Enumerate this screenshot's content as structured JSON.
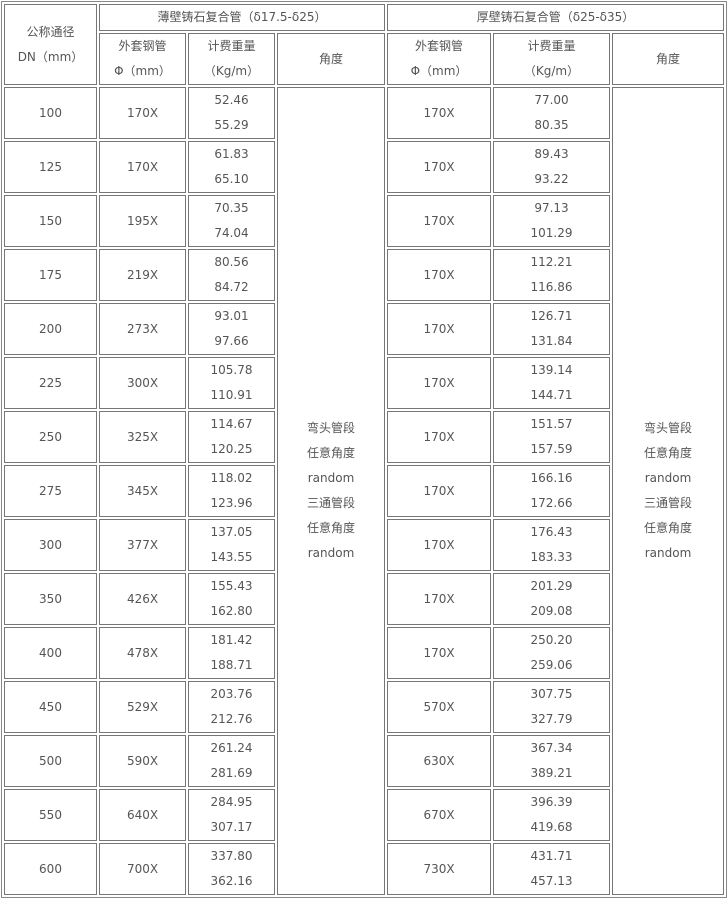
{
  "header": {
    "dn_label": [
      "公称通径",
      "DN（mm）"
    ],
    "thin_group": "薄壁铸石复合管（δ17.5-δ25）",
    "thick_group": "厚壁铸石复合管（δ25-δ35）",
    "outer_pipe": [
      "外套钢管",
      "Φ（mm）"
    ],
    "weight": [
      "计费重量",
      "（Kg/m）"
    ],
    "angle": "角度"
  },
  "angle_text": [
    "弯头管段",
    "任意角度",
    "random",
    "三通管段",
    "任意角度",
    "random"
  ],
  "rows": [
    {
      "dn": "100",
      "thin_pipe": "170X",
      "thin_w": [
        "52.46",
        "55.29"
      ],
      "thick_pipe": "170X",
      "thick_w": [
        "77.00",
        "80.35"
      ]
    },
    {
      "dn": "125",
      "thin_pipe": "170X",
      "thin_w": [
        "61.83",
        "65.10"
      ],
      "thick_pipe": "170X",
      "thick_w": [
        "89.43",
        "93.22"
      ]
    },
    {
      "dn": "150",
      "thin_pipe": "195X",
      "thin_w": [
        "70.35",
        "74.04"
      ],
      "thick_pipe": "170X",
      "thick_w": [
        "97.13",
        "101.29"
      ]
    },
    {
      "dn": "175",
      "thin_pipe": "219X",
      "thin_w": [
        "80.56",
        "84.72"
      ],
      "thick_pipe": "170X",
      "thick_w": [
        "112.21",
        "116.86"
      ]
    },
    {
      "dn": "200",
      "thin_pipe": "273X",
      "thin_w": [
        "93.01",
        "97.66"
      ],
      "thick_pipe": "170X",
      "thick_w": [
        "126.71",
        "131.84"
      ]
    },
    {
      "dn": "225",
      "thin_pipe": "300X",
      "thin_w": [
        "105.78",
        "110.91"
      ],
      "thick_pipe": "170X",
      "thick_w": [
        "139.14",
        "144.71"
      ]
    },
    {
      "dn": "250",
      "thin_pipe": "325X",
      "thin_w": [
        "114.67",
        "120.25"
      ],
      "thick_pipe": "170X",
      "thick_w": [
        "151.57",
        "157.59"
      ]
    },
    {
      "dn": "275",
      "thin_pipe": "345X",
      "thin_w": [
        "118.02",
        "123.96"
      ],
      "thick_pipe": "170X",
      "thick_w": [
        "166.16",
        "172.66"
      ]
    },
    {
      "dn": "300",
      "thin_pipe": "377X",
      "thin_w": [
        "137.05",
        "143.55"
      ],
      "thick_pipe": "170X",
      "thick_w": [
        "176.43",
        "183.33"
      ]
    },
    {
      "dn": "350",
      "thin_pipe": "426X",
      "thin_w": [
        "155.43",
        "162.80"
      ],
      "thick_pipe": "170X",
      "thick_w": [
        "201.29",
        "209.08"
      ]
    },
    {
      "dn": "400",
      "thin_pipe": "478X",
      "thin_w": [
        "181.42",
        "188.71"
      ],
      "thick_pipe": "170X",
      "thick_w": [
        "250.20",
        "259.06"
      ]
    },
    {
      "dn": "450",
      "thin_pipe": "529X",
      "thin_w": [
        "203.76",
        "212.76"
      ],
      "thick_pipe": "570X",
      "thick_w": [
        "307.75",
        "327.79"
      ]
    },
    {
      "dn": "500",
      "thin_pipe": "590X",
      "thin_w": [
        "261.24",
        "281.69"
      ],
      "thick_pipe": "630X",
      "thick_w": [
        "367.34",
        "389.21"
      ]
    },
    {
      "dn": "550",
      "thin_pipe": "640X",
      "thin_w": [
        "284.95",
        "307.17"
      ],
      "thick_pipe": "670X",
      "thick_w": [
        "396.39",
        "419.68"
      ]
    },
    {
      "dn": "600",
      "thin_pipe": "700X",
      "thin_w": [
        "337.80",
        "362.16"
      ],
      "thick_pipe": "730X",
      "thick_w": [
        "431.71",
        "457.13"
      ]
    }
  ]
}
